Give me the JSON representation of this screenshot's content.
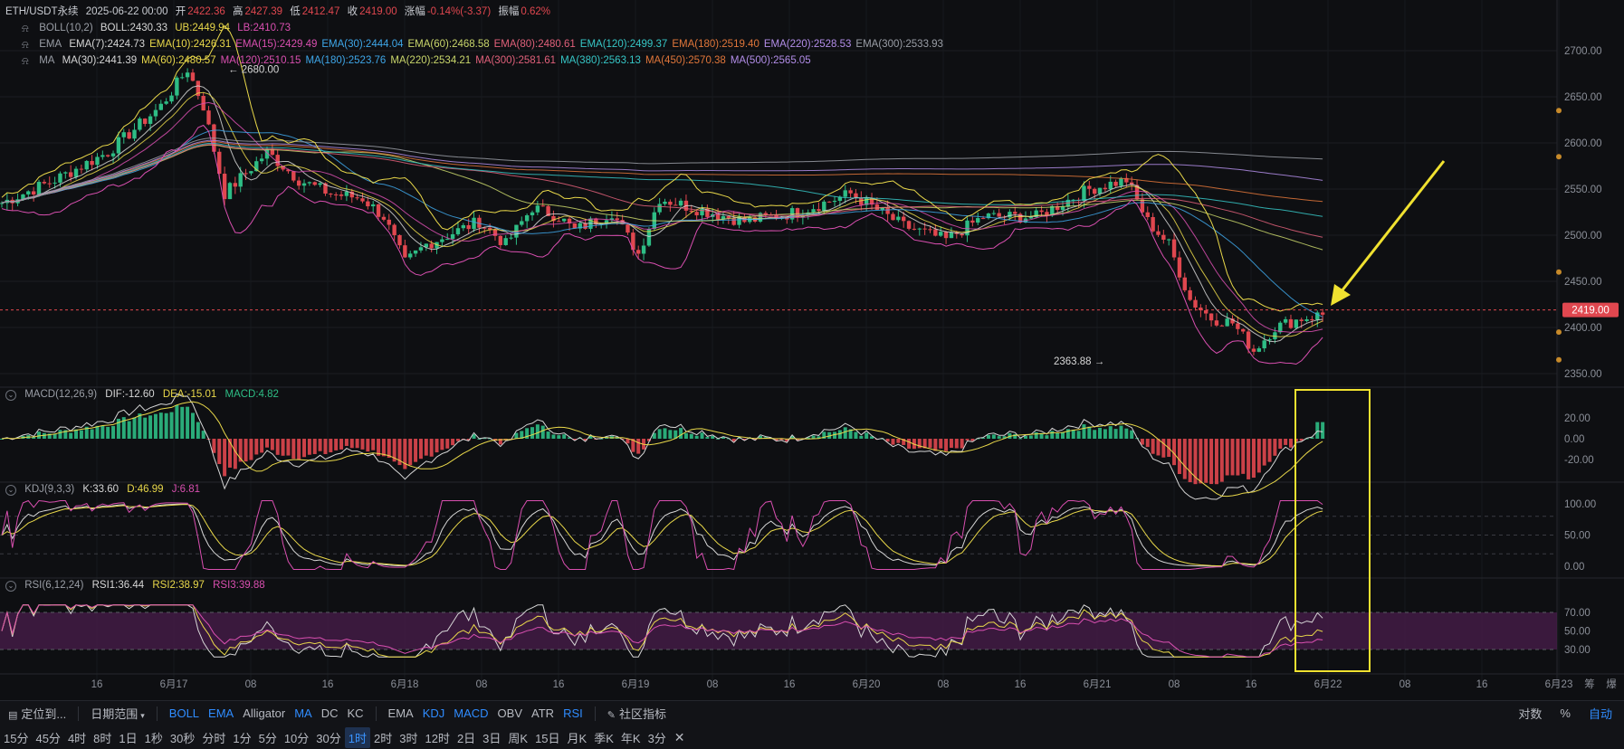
{
  "header": {
    "symbol": "ETH/USDT永续",
    "datetime": "2025-06-22 00:00",
    "open_label": "开",
    "open": "2422.36",
    "high_label": "高",
    "high": "2427.39",
    "low_label": "低",
    "low": "2412.47",
    "close_label": "收",
    "close": "2419.00",
    "change_label": "涨幅",
    "change": "-0.14%(-3.37)",
    "amp_label": "振幅",
    "amp": "0.62%"
  },
  "boll": {
    "name": "BOLL(10,2)",
    "boll": "BOLL:2430.33",
    "ub": "UB:2449.94",
    "lb": "LB:2410.73"
  },
  "ema": {
    "name": "EMA",
    "items": [
      {
        "text": "EMA(7):2424.73",
        "color": "#d6d6d6"
      },
      {
        "text": "EMA(10):2426.31",
        "color": "#e9d84a"
      },
      {
        "text": "EMA(15):2429.49",
        "color": "#d94fb0"
      },
      {
        "text": "EMA(30):2444.04",
        "color": "#3ea6e8"
      },
      {
        "text": "EMA(60):2468.58",
        "color": "#c9d66b"
      },
      {
        "text": "EMA(80):2480.61",
        "color": "#e0607a"
      },
      {
        "text": "EMA(120):2499.37",
        "color": "#36c6c6"
      },
      {
        "text": "EMA(180):2519.40",
        "color": "#e0763a"
      },
      {
        "text": "EMA(220):2528.53",
        "color": "#b28de8"
      },
      {
        "text": "EMA(300):2533.93",
        "color": "#9a9ea6"
      }
    ]
  },
  "ma": {
    "name": "MA",
    "items": [
      {
        "text": "MA(30):2441.39",
        "color": "#d6d6d6"
      },
      {
        "text": "MA(60):2480.57",
        "color": "#e9d84a"
      },
      {
        "text": "MA(120):2510.15",
        "color": "#d94fb0"
      },
      {
        "text": "MA(180):2523.76",
        "color": "#3ea6e8"
      },
      {
        "text": "MA(220):2534.21",
        "color": "#c9d66b"
      },
      {
        "text": "MA(300):2581.61",
        "color": "#e0607a"
      },
      {
        "text": "MA(380):2563.13",
        "color": "#36c6c6"
      },
      {
        "text": "MA(450):2570.38",
        "color": "#e0763a"
      },
      {
        "text": "MA(500):2565.05",
        "color": "#b28de8"
      }
    ]
  },
  "price_axis": [
    "2700.00",
    "2650.00",
    "2600.00",
    "2550.00",
    "2500.00",
    "2450.00",
    "2400.00",
    "2350.00"
  ],
  "last_price": "2419.00",
  "high_marker": "2680.00",
  "low_marker": "2363.88",
  "macd": {
    "name": "MACD(12,26,9)",
    "dif": "DIF:-12.60",
    "dea": "DEA:-15.01",
    "macd": "MACD:4.82",
    "axis": [
      "20.00",
      "0.00",
      "-20.00"
    ]
  },
  "kdj": {
    "name": "KDJ(9,3,3)",
    "k": "K:33.60",
    "d": "D:46.99",
    "j": "J:6.81",
    "axis": [
      "100.00",
      "50.00",
      "0.00"
    ]
  },
  "rsi": {
    "name": "RSI(6,12,24)",
    "r1": "RSI1:36.44",
    "r2": "RSI2:38.97",
    "r3": "RSI3:39.88",
    "axis": [
      "70.00",
      "50.00",
      "30.00"
    ]
  },
  "time_axis": [
    "16",
    "6月17",
    "08",
    "16",
    "6月18",
    "08",
    "16",
    "6月19",
    "08",
    "16",
    "6月20",
    "08",
    "16",
    "6月21",
    "08",
    "16",
    "6月22",
    "08",
    "16",
    "6月23"
  ],
  "corner_labels": {
    "chip": "筹",
    "burst": "爆"
  },
  "toolbar1": {
    "locate": "定位到...",
    "date_range": "日期范围",
    "main_indicators": [
      "BOLL",
      "EMA",
      "Alligator",
      "MA",
      "DC",
      "KC"
    ],
    "sub_indicators": [
      "EMA",
      "KDJ",
      "MACD",
      "OBV",
      "ATR",
      "RSI"
    ],
    "community": "社区指标",
    "log": "对数",
    "pct": "%",
    "auto": "自动"
  },
  "toolbar2": {
    "intervals": [
      "15分",
      "45分",
      "4时",
      "8时",
      "1日",
      "1秒",
      "30秒",
      "分时",
      "1分",
      "5分",
      "10分",
      "30分",
      "1时",
      "2时",
      "3时",
      "12时",
      "2日",
      "3日",
      "周K",
      "15日",
      "月K",
      "季K",
      "年K",
      "3分"
    ],
    "active": "1时"
  },
  "colors": {
    "up": "#2ebd85",
    "down": "#e0474f",
    "rsi_band": "#4a1e4c",
    "highlight": "#f0e130"
  }
}
